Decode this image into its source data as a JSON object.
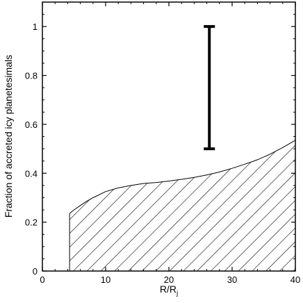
{
  "chart_data": {
    "type": "area",
    "xlabel_main": "R/R",
    "xlabel_sub": "j",
    "ylabel": "Fraction of accreted icy planetesimals",
    "xlim": [
      0,
      40
    ],
    "ylim": [
      0,
      1.1
    ],
    "x_ticks": [
      0,
      10,
      20,
      30,
      40
    ],
    "x_tick_labels": [
      "0",
      "10",
      "20",
      "30",
      "40"
    ],
    "y_ticks": [
      0,
      0.2,
      0.4,
      0.6,
      0.8,
      1
    ],
    "y_tick_labels": [
      "0",
      "0.2",
      "0.4",
      "0.6",
      "0.8",
      "1"
    ],
    "grid": false,
    "hatched_region": {
      "fill": "diagonal-hatch",
      "x": [
        4.3,
        5,
        6,
        7,
        8,
        10,
        12,
        14,
        16,
        18,
        20,
        22,
        24,
        26,
        28,
        30,
        32,
        34,
        36,
        38,
        40
      ],
      "y": [
        0.235,
        0.25,
        0.268,
        0.285,
        0.3,
        0.325,
        0.34,
        0.35,
        0.358,
        0.362,
        0.368,
        0.375,
        0.383,
        0.393,
        0.405,
        0.42,
        0.437,
        0.455,
        0.478,
        0.505,
        0.535
      ]
    },
    "error_bar": {
      "x": 26.4,
      "y_low": 0.5,
      "y_high": 1.0
    }
  }
}
